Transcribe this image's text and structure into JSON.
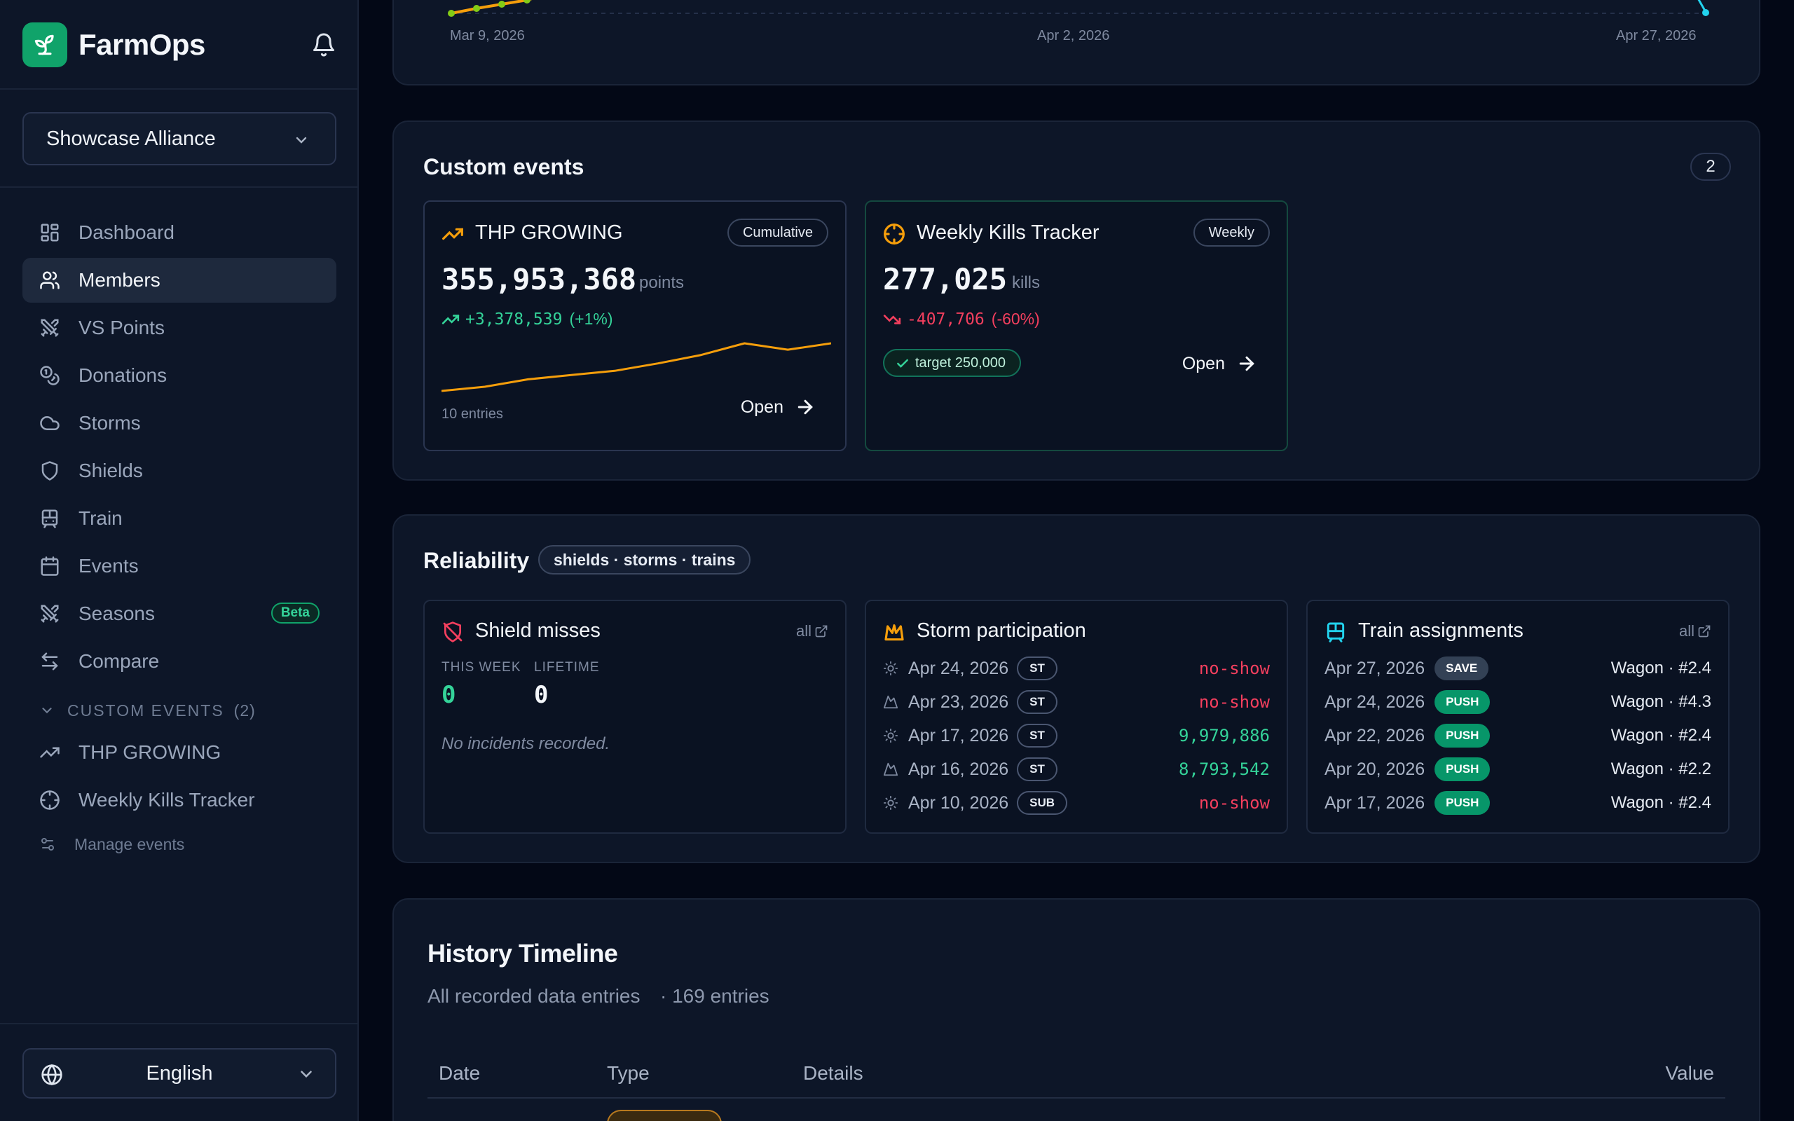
{
  "app": {
    "name": "FarmOps"
  },
  "alliance": {
    "selected": "Showcase Alliance"
  },
  "nav": {
    "items": [
      {
        "label": "Dashboard",
        "icon": "dashboard-icon"
      },
      {
        "label": "Members",
        "icon": "users-icon",
        "active": true
      },
      {
        "label": "VS Points",
        "icon": "swords-icon"
      },
      {
        "label": "Donations",
        "icon": "coins-icon"
      },
      {
        "label": "Storms",
        "icon": "cloud-icon"
      },
      {
        "label": "Shields",
        "icon": "shield-icon"
      },
      {
        "label": "Train",
        "icon": "train-icon"
      },
      {
        "label": "Events",
        "icon": "calendar-icon"
      },
      {
        "label": "Seasons",
        "icon": "swords-icon",
        "badge": "Beta"
      },
      {
        "label": "Compare",
        "icon": "arrows-icon"
      }
    ],
    "custom_section": {
      "label": "CUSTOM EVENTS",
      "count": "(2)"
    },
    "custom_items": [
      {
        "label": "THP GROWING",
        "icon": "trending-up-icon"
      },
      {
        "label": "Weekly Kills Tracker",
        "icon": "crosshair-icon"
      }
    ],
    "manage": "Manage events"
  },
  "language": {
    "selected": "English"
  },
  "top_chart": {
    "x_labels": [
      "Mar 9, 2026",
      "Apr 2, 2026",
      "Apr 27, 2026"
    ]
  },
  "custom_events": {
    "title": "Custom events",
    "count": "2",
    "cards": [
      {
        "title": "THP GROWING",
        "badge": "Cumulative",
        "value": "355,953,368",
        "unit": "points",
        "delta": "+3,378,539",
        "delta_pct": "(+1%)",
        "entries": "10 entries",
        "open": "Open",
        "sparkline": [
          0.1,
          0.18,
          0.32,
          0.4,
          0.48,
          0.62,
          0.78,
          1.0,
          0.88,
          1.0
        ],
        "color": "#f59e0b"
      },
      {
        "title": "Weekly Kills Tracker",
        "badge": "Weekly",
        "value": "277,025",
        "unit": "kills",
        "delta": "-407,706",
        "delta_pct": "(-60%)",
        "target": "target 250,000",
        "open": "Open"
      }
    ]
  },
  "reliability": {
    "title": "Reliability",
    "tag": "shields · storms · trains",
    "shields": {
      "title": "Shield misses",
      "all": "all",
      "this_week_label": "THIS WEEK",
      "this_week": "0",
      "lifetime_label": "LIFETIME",
      "lifetime": "0",
      "empty": "No incidents recorded."
    },
    "storms": {
      "title": "Storm participation",
      "rows": [
        {
          "date": "Apr 24, 2026",
          "tag": "ST",
          "value": "no-show",
          "icon": "sun-icon"
        },
        {
          "date": "Apr 23, 2026",
          "tag": "ST",
          "value": "no-show",
          "icon": "mountain-icon"
        },
        {
          "date": "Apr 17, 2026",
          "tag": "ST",
          "value": "9,979,886",
          "icon": "sun-icon"
        },
        {
          "date": "Apr 16, 2026",
          "tag": "ST",
          "value": "8,793,542",
          "icon": "mountain-icon"
        },
        {
          "date": "Apr 10, 2026",
          "tag": "SUB",
          "value": "no-show",
          "icon": "sun-icon"
        }
      ]
    },
    "trains": {
      "title": "Train assignments",
      "all": "all",
      "rows": [
        {
          "date": "Apr 27, 2026",
          "tag": "SAVE",
          "value": "Wagon · #2.4"
        },
        {
          "date": "Apr 24, 2026",
          "tag": "PUSH",
          "value": "Wagon · #4.3"
        },
        {
          "date": "Apr 22, 2026",
          "tag": "PUSH",
          "value": "Wagon · #2.4"
        },
        {
          "date": "Apr 20, 2026",
          "tag": "PUSH",
          "value": "Wagon · #2.2"
        },
        {
          "date": "Apr 17, 2026",
          "tag": "PUSH",
          "value": "Wagon · #2.4"
        }
      ]
    }
  },
  "history": {
    "title": "History Timeline",
    "subtitle": "All recorded data entries",
    "count": "· 169 entries",
    "columns": [
      "Date",
      "Type",
      "Details",
      "Value"
    ]
  },
  "colors": {
    "accent": "#10a36a",
    "positive": "#34d399",
    "negative": "#f43f5e",
    "orange": "#f59e0b"
  }
}
